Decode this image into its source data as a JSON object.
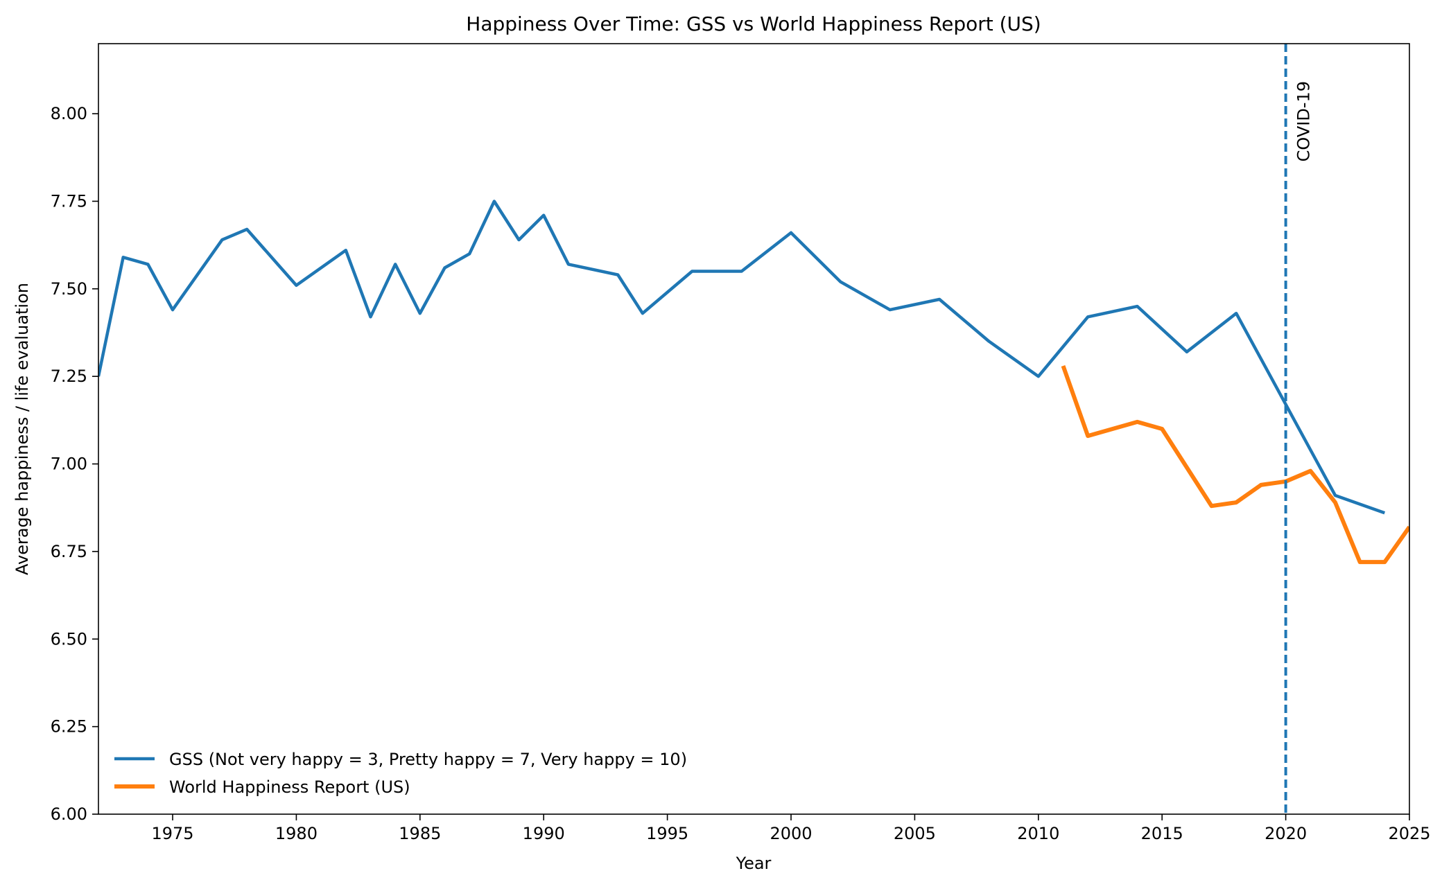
{
  "chart_data": {
    "type": "line",
    "title": "Happiness Over Time: GSS vs World Happiness Report (US)",
    "xlabel": "Year",
    "ylabel": "Average happiness / life evaluation",
    "xlim": [
      1972,
      2025
    ],
    "ylim": [
      6.0,
      8.2
    ],
    "xticks": [
      1975,
      1980,
      1985,
      1990,
      1995,
      2000,
      2005,
      2010,
      2015,
      2020,
      2025
    ],
    "xtick_labels": [
      "1975",
      "1980",
      "1985",
      "1990",
      "1995",
      "2000",
      "2005",
      "2010",
      "2015",
      "2020",
      "2025"
    ],
    "yticks": [
      6.0,
      6.25,
      6.5,
      6.75,
      7.0,
      7.25,
      7.5,
      7.75,
      8.0
    ],
    "ytick_labels": [
      "6.00",
      "6.25",
      "6.50",
      "6.75",
      "7.00",
      "7.25",
      "7.50",
      "7.75",
      "8.00"
    ],
    "grid": false,
    "legend_position": "lower-left",
    "series": [
      {
        "name": "GSS (Not very happy = 3, Pretty happy = 7, Very happy = 10)",
        "color": "#1f77b4",
        "x": [
          1972,
          1973,
          1974,
          1975,
          1976,
          1977,
          1978,
          1980,
          1982,
          1983,
          1984,
          1985,
          1986,
          1987,
          1988,
          1989,
          1990,
          1991,
          1993,
          1994,
          1996,
          1998,
          2000,
          2002,
          2004,
          2006,
          2008,
          2010,
          2012,
          2014,
          2016,
          2018,
          2021,
          2022,
          2024
        ],
        "y": [
          7.25,
          7.59,
          7.57,
          7.44,
          7.54,
          7.64,
          7.67,
          7.51,
          7.61,
          7.42,
          7.57,
          7.43,
          7.56,
          7.6,
          7.75,
          7.64,
          7.71,
          7.57,
          7.54,
          7.43,
          7.55,
          7.55,
          7.66,
          7.52,
          7.44,
          7.47,
          7.35,
          7.25,
          7.42,
          7.45,
          7.32,
          7.43,
          7.04,
          6.91,
          6.86
        ]
      },
      {
        "name": "World Happiness Report (US)",
        "color": "#ff7f0e",
        "x": [
          2011,
          2012,
          2013,
          2014,
          2015,
          2016,
          2017,
          2018,
          2019,
          2020,
          2021,
          2022,
          2023,
          2024,
          2025
        ],
        "y": [
          7.28,
          7.08,
          7.1,
          7.12,
          7.1,
          6.99,
          6.88,
          6.89,
          6.94,
          6.95,
          6.98,
          6.89,
          6.72,
          6.72,
          6.82
        ]
      }
    ],
    "annotations": [
      {
        "type": "vline",
        "x": 2020,
        "label": "COVID-19",
        "color": "#1f77b4",
        "style": "dashed"
      }
    ]
  }
}
